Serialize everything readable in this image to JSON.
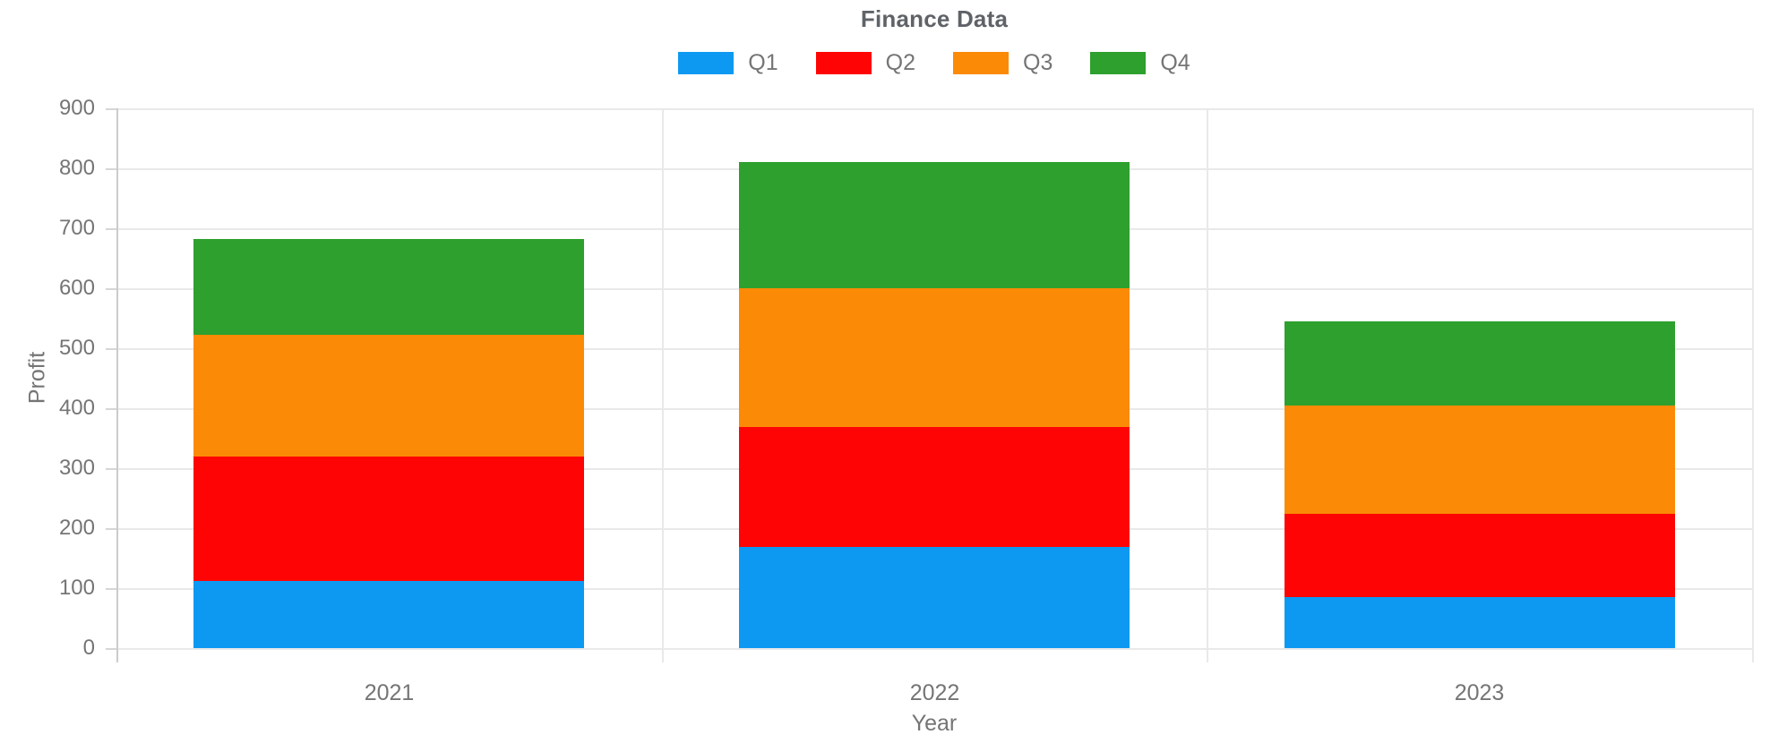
{
  "chart_data": {
    "type": "bar",
    "stacked": true,
    "title": "Finance Data",
    "xlabel": "Year",
    "ylabel": "Profit",
    "categories": [
      "2021",
      "2022",
      "2023"
    ],
    "series": [
      {
        "name": "Q1",
        "color": "#0d99f2",
        "values": [
          112,
          168,
          85
        ]
      },
      {
        "name": "Q2",
        "color": "#fe0404",
        "values": [
          208,
          200,
          140
        ]
      },
      {
        "name": "Q3",
        "color": "#fb8a07",
        "values": [
          203,
          232,
          180
        ]
      },
      {
        "name": "Q4",
        "color": "#2da02d",
        "values": [
          159,
          210,
          140
        ]
      }
    ],
    "ylim": [
      0,
      900
    ],
    "ytick_step": 100,
    "yticks": [
      "0",
      "100",
      "200",
      "300",
      "400",
      "500",
      "600",
      "700",
      "800",
      "900"
    ],
    "grid": true,
    "legend_position": "top"
  }
}
